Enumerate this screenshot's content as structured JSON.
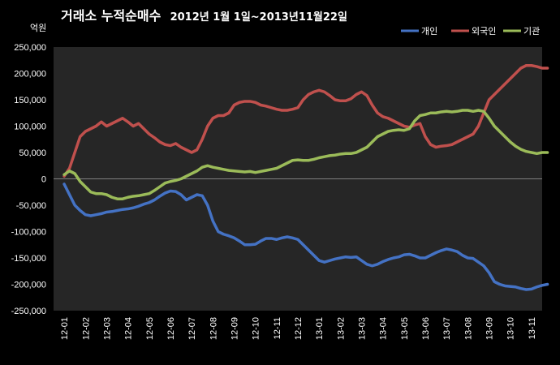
{
  "chart_data": {
    "type": "line",
    "title": "거래소 누적순매수 2012년 1월 1일~2013년11월22일",
    "title_main": "거래소 누적순매수",
    "title_period": "2012년 1월 1일~2013년11월22일",
    "unit_label": "억원",
    "ylim": [
      -250000,
      250000
    ],
    "yticks": [
      250000,
      200000,
      150000,
      100000,
      50000,
      0,
      -50000,
      -100000,
      -150000,
      -200000,
      -250000
    ],
    "ytick_labels": [
      "250,000",
      "200,000",
      "150,000",
      "100,000",
      "50,000",
      "0",
      "-50,000",
      "-100,000",
      "-150,000",
      "-200,000",
      "-250,000"
    ],
    "categories": [
      "12-01",
      "12-02",
      "12-03",
      "12-04",
      "12-05",
      "12-06",
      "12-07",
      "12-08",
      "12-09",
      "12-10",
      "12-11",
      "12-12",
      "13-01",
      "13-02",
      "13-03",
      "13-04",
      "13-05",
      "13-06",
      "13-07",
      "13-08",
      "13-09",
      "13-10",
      "13-11"
    ],
    "x": [
      0,
      0.25,
      0.5,
      0.75,
      1,
      1.25,
      1.5,
      1.75,
      2,
      2.25,
      2.5,
      2.75,
      3,
      3.25,
      3.5,
      3.75,
      4,
      4.25,
      4.5,
      4.75,
      5,
      5.25,
      5.5,
      5.75,
      6,
      6.25,
      6.5,
      6.75,
      7,
      7.25,
      7.5,
      7.75,
      8,
      8.25,
      8.5,
      8.75,
      9,
      9.25,
      9.5,
      9.75,
      10,
      10.25,
      10.5,
      10.75,
      11,
      11.25,
      11.5,
      11.75,
      12,
      12.25,
      12.5,
      12.75,
      13,
      13.25,
      13.5,
      13.75,
      14,
      14.25,
      14.5,
      14.75,
      15,
      15.25,
      15.5,
      15.75,
      16,
      16.25,
      16.5,
      16.75,
      17,
      17.25,
      17.5,
      17.75,
      18,
      18.25,
      18.5,
      18.75,
      19,
      19.25,
      19.5,
      19.75,
      20,
      20.25,
      20.5,
      20.75,
      21,
      21.25,
      21.5,
      21.75,
      22,
      22.25,
      22.5,
      22.75
    ],
    "series": [
      {
        "name": "개인",
        "color": "#4472C4",
        "values": [
          -10000,
          -30000,
          -50000,
          -60000,
          -68000,
          -70000,
          -68000,
          -66000,
          -63000,
          -62000,
          -60000,
          -58000,
          -57000,
          -55000,
          -52000,
          -48000,
          -45000,
          -40000,
          -33000,
          -27000,
          -23000,
          -24000,
          -30000,
          -40000,
          -35000,
          -30000,
          -32000,
          -50000,
          -80000,
          -100000,
          -105000,
          -108000,
          -112000,
          -118000,
          -125000,
          -125000,
          -124000,
          -118000,
          -113000,
          -113000,
          -115000,
          -112000,
          -110000,
          -112000,
          -115000,
          -125000,
          -135000,
          -145000,
          -155000,
          -158000,
          -155000,
          -152000,
          -150000,
          -148000,
          -149000,
          -148000,
          -155000,
          -162000,
          -165000,
          -162000,
          -157000,
          -153000,
          -150000,
          -148000,
          -144000,
          -143000,
          -146000,
          -150000,
          -150000,
          -145000,
          -140000,
          -136000,
          -133000,
          -135000,
          -138000,
          -145000,
          -150000,
          -151000,
          -158000,
          -165000,
          -178000,
          -195000,
          -200000,
          -203000,
          -204000,
          -205000,
          -208000,
          -210000,
          -209000,
          -205000,
          -202000,
          -200000
        ]
      },
      {
        "name": "외국인",
        "color": "#C0504D",
        "values": [
          5000,
          20000,
          50000,
          80000,
          90000,
          95000,
          100000,
          108000,
          100000,
          105000,
          110000,
          115000,
          108000,
          100000,
          105000,
          95000,
          85000,
          78000,
          70000,
          65000,
          63000,
          67000,
          60000,
          55000,
          50000,
          55000,
          75000,
          100000,
          115000,
          120000,
          120000,
          125000,
          140000,
          145000,
          147000,
          147000,
          145000,
          140000,
          138000,
          135000,
          132000,
          130000,
          130000,
          132000,
          135000,
          150000,
          160000,
          165000,
          168000,
          165000,
          158000,
          150000,
          148000,
          148000,
          152000,
          160000,
          165000,
          158000,
          140000,
          125000,
          118000,
          115000,
          110000,
          105000,
          100000,
          98000,
          102000,
          105000,
          80000,
          65000,
          60000,
          62000,
          63000,
          65000,
          70000,
          75000,
          80000,
          85000,
          100000,
          125000,
          150000,
          160000,
          170000,
          180000,
          190000,
          200000,
          210000,
          215000,
          215000,
          213000,
          210000,
          210000
        ]
      },
      {
        "name": "기관",
        "color": "#9BBB59",
        "values": [
          8000,
          15000,
          10000,
          -5000,
          -15000,
          -25000,
          -28000,
          -28000,
          -30000,
          -35000,
          -38000,
          -38000,
          -35000,
          -33000,
          -32000,
          -30000,
          -28000,
          -22000,
          -15000,
          -8000,
          -5000,
          -3000,
          0,
          5000,
          10000,
          15000,
          22000,
          25000,
          22000,
          20000,
          18000,
          16000,
          15000,
          14000,
          13000,
          14000,
          12000,
          14000,
          16000,
          18000,
          20000,
          25000,
          30000,
          35000,
          36000,
          35000,
          35000,
          37000,
          40000,
          42000,
          44000,
          45000,
          47000,
          48000,
          48000,
          50000,
          55000,
          60000,
          70000,
          80000,
          85000,
          90000,
          92000,
          93000,
          92000,
          95000,
          110000,
          120000,
          122000,
          125000,
          125000,
          127000,
          128000,
          127000,
          128000,
          130000,
          130000,
          128000,
          130000,
          128000,
          115000,
          100000,
          90000,
          80000,
          70000,
          62000,
          56000,
          52000,
          50000,
          48000,
          50000,
          50000
        ]
      }
    ],
    "legend_position": "top-right",
    "grid": false
  }
}
